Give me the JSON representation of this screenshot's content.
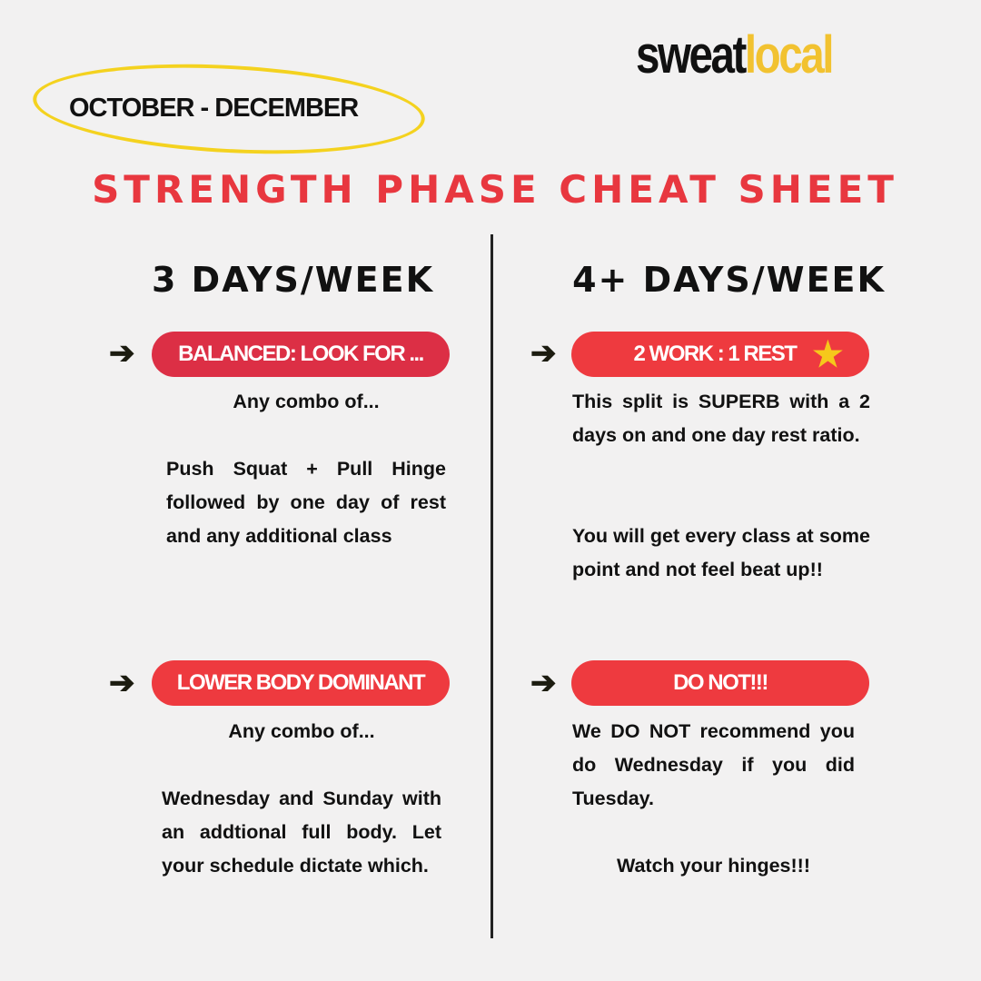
{
  "brand": {
    "logo_part1": "sweat",
    "logo_part2": "local"
  },
  "period": "OCTOBER - DECEMBER",
  "title": "STRENGTH PHASE CHEAT SHEET",
  "colors": {
    "accent_red": "#e8373f",
    "pill_dark_red": "#dc2f45",
    "yellow": "#f4d21f"
  },
  "left": {
    "heading": "3 DAYS/WEEK",
    "sections": [
      {
        "label": "BALANCED:  LOOK FOR ...",
        "intro": "Any combo of...",
        "body": "Push Squat + Pull Hinge followed by one day of rest and any additional class"
      },
      {
        "label": "LOWER BODY DOMINANT",
        "intro": "Any combo of...",
        "body": "Wednesday and Sunday with an addtional full body. Let your schedule dictate which."
      }
    ]
  },
  "right": {
    "heading": "4+ DAYS/WEEK",
    "sections": [
      {
        "label": "2 WORK : 1 REST",
        "icon": "star-icon",
        "body": "This split is SUPERB with a 2 days on and one day rest ratio.",
        "body2": "You will get every class at some point and not feel beat up!!"
      },
      {
        "label": "DO NOT!!!",
        "body": "We DO NOT recommend you do Wednesday if you did Tuesday.",
        "body2": "Watch your hinges!!!"
      }
    ]
  },
  "arrow_glyph": "➔"
}
